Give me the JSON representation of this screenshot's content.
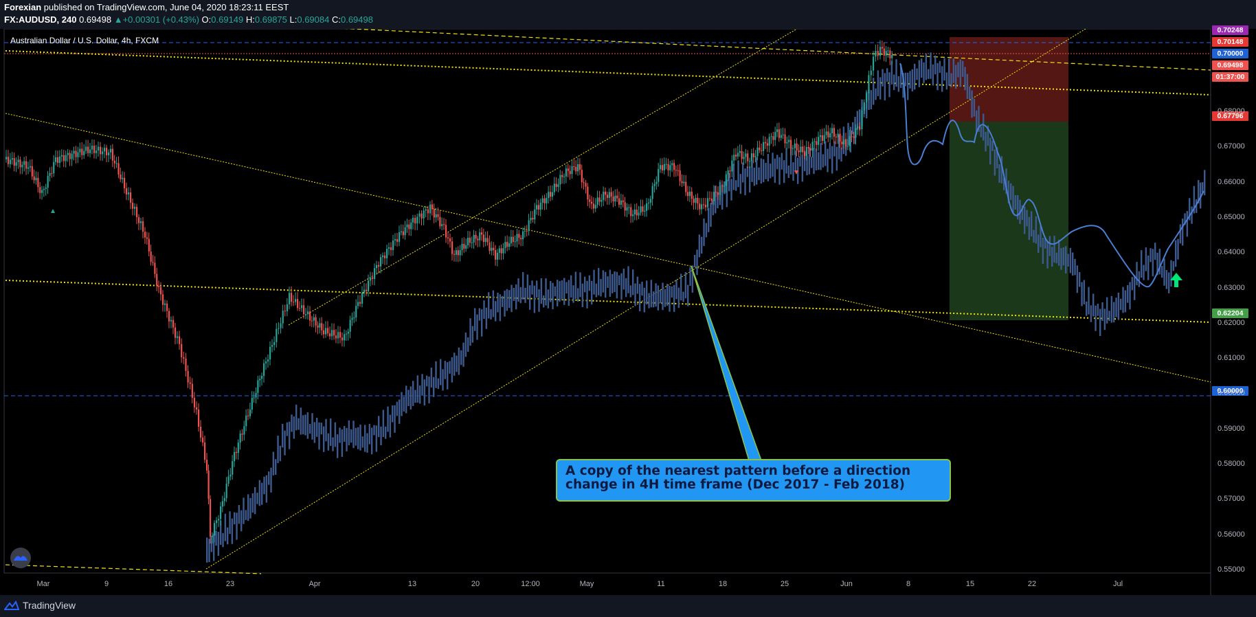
{
  "header": {
    "publisher": "Forexian",
    "published_text": " published on TradingView.com, June 04, 2020 18:23:11 EEST",
    "symbol": "FX:AUDUSD, 240",
    "last": "0.69498",
    "change": "+0.00301 (+0.43%)",
    "o_label": "O:",
    "o_value": "0.69149",
    "h_label": "H:",
    "h_value": "0.69875",
    "l_label": "L:",
    "l_value": "0.69084",
    "c_label": "C:",
    "c_value": "0.69498"
  },
  "chart": {
    "title": "Australian Dollar / U.S. Dollar, 4h, FXCM",
    "price_ticks": [
      "0.68000",
      "0.67000",
      "0.66000",
      "0.65000",
      "0.64000",
      "0.63000",
      "0.62000",
      "0.61000",
      "0.60000",
      "0.59000",
      "0.58000",
      "0.57000",
      "0.56000",
      "0.55000"
    ],
    "date_ticks": [
      "Mar",
      "9",
      "16",
      "23",
      "Apr",
      "13",
      "20",
      "12:00",
      "May",
      "11",
      "18",
      "25",
      "Jun",
      "8",
      "15",
      "22",
      "Jul"
    ],
    "price_labels": [
      {
        "text": "0.70248",
        "color": "#9c27b0"
      },
      {
        "text": "0.70148",
        "color": "#e53935"
      },
      {
        "text": "0.70000",
        "color": "#1e63d6"
      },
      {
        "text": "0.69498",
        "color": "#ef5350"
      },
      {
        "text": "01:37:00",
        "color": "#ef5350"
      },
      {
        "text": "0.67796",
        "color": "#e53935"
      },
      {
        "text": "0.62204",
        "color": "#43a047"
      },
      {
        "text": "0.60000",
        "color": "#1e63d6"
      }
    ],
    "annotation": "A copy of the nearest pattern before a direction change in 4H time frame (Dec 2017 - Feb 2018)",
    "colors": {
      "up": "#26a69a",
      "down": "#ef5350",
      "ghost": "#3d5a8f",
      "projection": "#4a7fd6",
      "trendline": "#f5e50a"
    }
  },
  "footer": {
    "brand": "TradingView"
  }
}
